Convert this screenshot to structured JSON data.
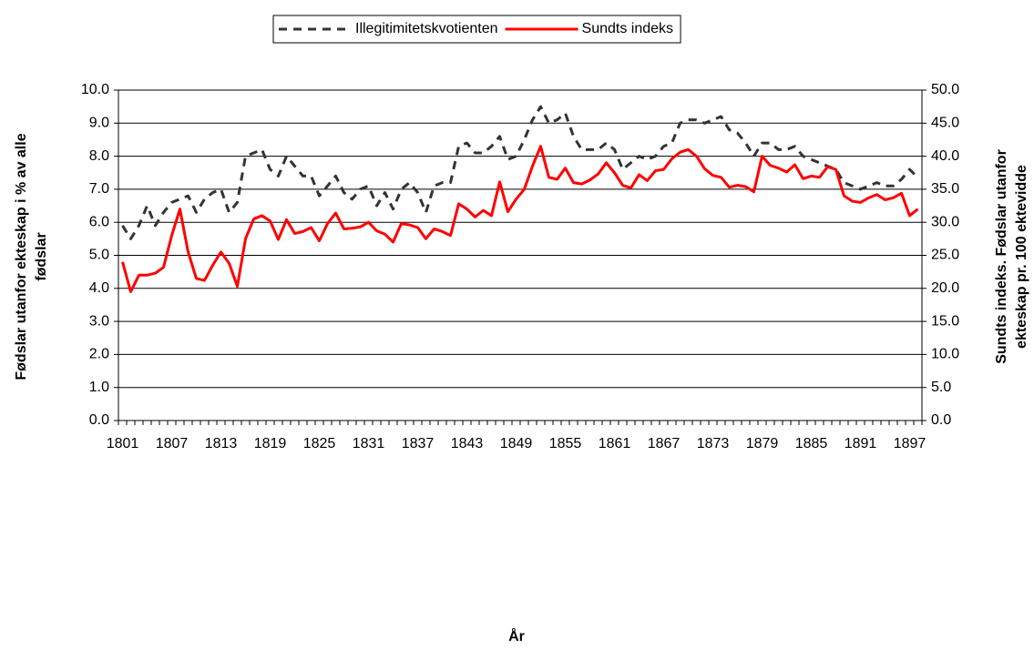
{
  "chart_data": {
    "type": "line",
    "x_label": "År",
    "y_label": [
      "Fødslar utanfor ekteskap i % av alle",
      "fødslar"
    ],
    "y2_label": [
      "Sundts indeks. Fødslar utanfor",
      "ekteskap pr. 100 ektevidde"
    ],
    "categories": [
      "1801",
      null,
      null,
      null,
      null,
      null,
      "1807",
      null,
      null,
      null,
      null,
      null,
      "1813",
      null,
      null,
      null,
      null,
      null,
      "1819",
      null,
      null,
      null,
      null,
      null,
      "1825",
      null,
      null,
      null,
      null,
      null,
      "1831",
      null,
      null,
      null,
      null,
      null,
      "1837",
      null,
      null,
      null,
      null,
      null,
      "1843",
      null,
      null,
      null,
      null,
      null,
      "1849",
      null,
      null,
      null,
      null,
      null,
      "1855",
      null,
      null,
      null,
      null,
      null,
      "1861",
      null,
      null,
      null,
      null,
      null,
      "1867",
      null,
      null,
      null,
      null,
      null,
      "1873",
      null,
      null,
      null,
      null,
      null,
      "1879",
      null,
      null,
      null,
      null,
      null,
      "1885",
      null,
      null,
      null,
      null,
      null,
      "1891",
      null,
      null,
      null,
      null,
      null,
      "1897",
      null
    ],
    "series": [
      {
        "name": "Illegitimitetskvotienten",
        "color": "#333333",
        "line_style": "dashed",
        "axis": "y",
        "values": [
          5.9,
          5.5,
          5.9,
          6.5,
          5.9,
          6.3,
          6.6,
          6.7,
          6.8,
          6.3,
          6.7,
          6.9,
          7.0,
          6.3,
          6.6,
          8.0,
          8.1,
          8.2,
          7.6,
          7.4,
          8.0,
          7.7,
          7.4,
          7.4,
          6.8,
          7.1,
          7.4,
          6.9,
          6.7,
          7.0,
          7.1,
          6.5,
          6.9,
          6.4,
          7.0,
          7.2,
          6.9,
          6.3,
          7.1,
          7.2,
          7.2,
          8.3,
          8.4,
          8.1,
          8.1,
          8.3,
          8.6,
          7.9,
          8.0,
          8.5,
          9.1,
          9.5,
          9.0,
          9.1,
          9.3,
          8.6,
          8.2,
          8.2,
          8.2,
          8.4,
          8.2,
          7.6,
          7.8,
          8.0,
          7.9,
          8.0,
          8.3,
          8.4,
          9.0,
          9.1,
          9.1,
          9.0,
          9.1,
          9.2,
          8.8,
          8.7,
          8.4,
          8.0,
          8.4,
          8.4,
          8.2,
          8.2,
          8.3,
          8.0,
          7.9,
          7.8,
          7.7,
          7.6,
          7.2,
          7.1,
          7.0,
          7.1,
          7.2,
          7.1,
          7.1,
          7.3,
          7.6,
          7.35
        ]
      },
      {
        "name": "Sundts indeks",
        "color": "#ff0000",
        "line_style": "solid",
        "axis": "y2",
        "values": [
          24,
          19.5,
          22,
          22,
          22.3,
          23.2,
          28,
          32,
          25.5,
          21.5,
          21.2,
          23.5,
          25.5,
          23.8,
          20.3,
          27.5,
          30.5,
          31,
          30.2,
          27.4,
          30.4,
          28.3,
          28.6,
          29.2,
          27.2,
          29.8,
          31.4,
          29,
          29.1,
          29.3,
          30,
          28.7,
          28.2,
          27,
          29.8,
          29.6,
          29.2,
          27.5,
          29,
          28.6,
          28,
          32.8,
          32,
          30.8,
          31.8,
          31,
          36.1,
          31.6,
          33.5,
          35,
          38.5,
          41.5,
          36.8,
          36.5,
          38.2,
          36,
          35.8,
          36.4,
          37.3,
          39,
          37.5,
          35.6,
          35.2,
          37.2,
          36.3,
          37.8,
          38,
          39.6,
          40.6,
          41,
          40,
          38.1,
          37.1,
          36.8,
          35.3,
          35.6,
          35.4,
          34.6,
          40,
          38.6,
          38.2,
          37.6,
          38.7,
          36.6,
          37,
          36.8,
          38.4,
          38,
          34,
          33.2,
          33,
          33.7,
          34.2,
          33.4,
          33.7,
          34.4,
          31,
          32
        ]
      }
    ],
    "ylim": [
      0,
      10
    ],
    "yticks": [
      {
        "value": 0,
        "label": "0.0"
      },
      {
        "value": 1,
        "label": "1.0"
      },
      {
        "value": 2,
        "label": "2.0"
      },
      {
        "value": 3,
        "label": "3.0"
      },
      {
        "value": 4,
        "label": "4.0"
      },
      {
        "value": 5,
        "label": "5.0"
      },
      {
        "value": 6,
        "label": "6.0"
      },
      {
        "value": 7,
        "label": "7.0"
      },
      {
        "value": 8,
        "label": "8.0"
      },
      {
        "value": 9,
        "label": "9.0"
      },
      {
        "value": 10,
        "label": "10.0"
      }
    ],
    "y2lim": [
      0,
      50
    ],
    "y2ticks": [
      {
        "value": 0,
        "label": "0.0"
      },
      {
        "value": 5,
        "label": "5.0"
      },
      {
        "value": 10,
        "label": "10.0"
      },
      {
        "value": 15,
        "label": "15.0"
      },
      {
        "value": 20,
        "label": "20.0"
      },
      {
        "value": 25,
        "label": "25.0"
      },
      {
        "value": 30,
        "label": "30.0"
      },
      {
        "value": 35,
        "label": "35.0"
      },
      {
        "value": 40,
        "label": "40.0"
      },
      {
        "value": 45,
        "label": "45.0"
      },
      {
        "value": 50,
        "label": "50.0"
      }
    ],
    "grid": true,
    "legend": "top"
  }
}
